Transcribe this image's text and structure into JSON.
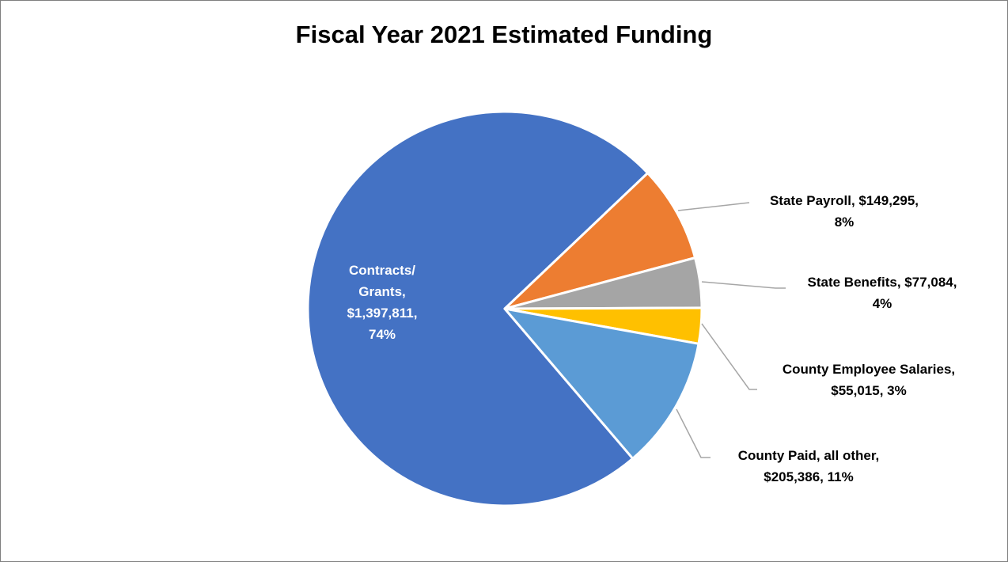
{
  "chart_data": {
    "type": "pie",
    "title": "Fiscal Year 2021 Estimated Funding",
    "slices": [
      {
        "name": "Contracts/ Grants",
        "value": 1397811,
        "percent": 74,
        "color": "#4472C4",
        "label_lines": [
          "Contracts/",
          "Grants,",
          "$1,397,811,",
          "74%"
        ]
      },
      {
        "name": "State Payroll",
        "value": 149295,
        "percent": 8,
        "color": "#ED7D31",
        "label_lines": [
          "State Payroll, $149,295,",
          "8%"
        ]
      },
      {
        "name": "State Benefits",
        "value": 77084,
        "percent": 4,
        "color": "#A5A5A5",
        "label_lines": [
          "State Benefits, $77,084,",
          "4%"
        ]
      },
      {
        "name": "County Employee Salaries",
        "value": 55015,
        "percent": 3,
        "color": "#FFC000",
        "label_lines": [
          "County Employee Salaries,",
          "$55,015, 3%"
        ]
      },
      {
        "name": "County Paid, all other",
        "value": 205386,
        "percent": 11,
        "color": "#5B9BD5",
        "label_lines": [
          "County Paid, all other,",
          "$205,386, 11%"
        ]
      }
    ],
    "legend": "none"
  }
}
